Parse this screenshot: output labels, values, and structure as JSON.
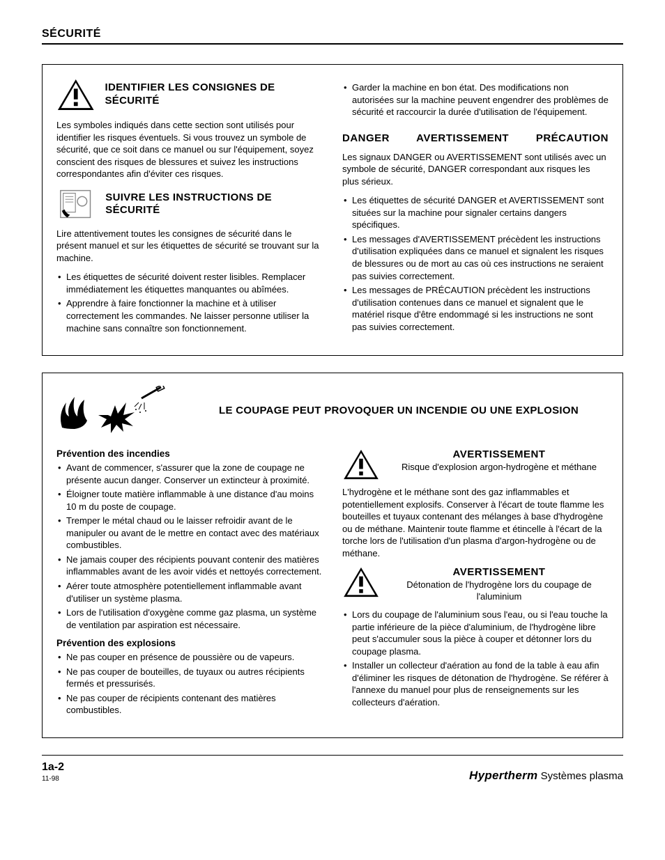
{
  "header": "SÉCURITÉ",
  "box1": {
    "left": {
      "s1": {
        "title": "IDENTIFIER LES CONSIGNES DE SÉCURITÉ",
        "body": "Les symboles indiqués dans cette section sont utilisés pour identifier les risques éventuels. Si vous trouvez un symbole de sécurité, que ce soit dans ce manuel ou sur l'équipement, soyez conscient des risques de blessures et suivez les instructions correspondantes afin d'éviter ces risques."
      },
      "s2": {
        "title": "SUIVRE LES INSTRUCTIONS DE SÉCURITÉ",
        "body": "Lire attentivement toutes les consignes de sécurité dans le présent manuel et sur les étiquettes de sécurité se trouvant sur la machine.",
        "bullets": [
          "Les étiquettes de sécurité doivent rester lisibles. Remplacer immédiatement les étiquettes manquantes ou abîmées.",
          "Apprendre à faire fonctionner la machine et à utiliser correctement les commandes. Ne laisser personne utiliser la machine sans connaître son fonctionnement."
        ]
      }
    },
    "right": {
      "top_bullet": "Garder la machine en bon état. Des modifications non autorisées sur la machine peuvent engendrer des problèmes de sécurité et raccourcir la durée d'utilisation de l'équipement.",
      "heading": "DANGER   AVERTISSEMENT   PRÉCAUTION",
      "body": "Les signaux DANGER ou AVERTISSEMENT sont utilisés avec un symbole de sécurité, DANGER correspondant aux risques les plus sérieux.",
      "bullets": [
        "Les étiquettes de sécurité DANGER et AVERTISSEMENT sont situées sur la machine pour signaler certains dangers spécifiques.",
        "Les messages d'AVERTISSEMENT précèdent les instructions d'utilisation expliquées dans ce manuel et signalent les risques de blessures ou de mort au cas où ces instructions ne seraient pas suivies correctement.",
        "Les messages de PRÉCAUTION précèdent les instructions d'utilisation contenues dans ce manuel et signalent que le matériel risque d'être endommagé si les instructions ne sont pas suivies correctement."
      ]
    }
  },
  "box2": {
    "title": "LE COUPAGE PEUT PROVOQUER UN INCENDIE OU UNE EXPLOSION",
    "left": {
      "h1": "Prévention des incendies",
      "b1": [
        "Avant de commencer, s'assurer que la zone de coupage ne présente aucun danger. Conserver un extincteur à proximité.",
        "Éloigner toute matière inflammable à une distance d'au moins 10 m du poste de coupage.",
        "Tremper le métal chaud ou le laisser refroidir avant de le manipuler ou avant de le mettre en contact avec des matériaux combustibles.",
        "Ne jamais couper des récipients pouvant contenir des matières inflammables avant de les avoir vidés et nettoyés correctement.",
        "Aérer toute atmosphère potentiellement inflammable avant d'utiliser un système plasma.",
        "Lors de l'utilisation d'oxygène comme gaz plasma, un système de ventilation par aspiration est nécessaire."
      ],
      "h2": "Prévention des explosions",
      "b2": [
        "Ne pas couper en présence de poussière ou de vapeurs.",
        "Ne pas couper de bouteilles, de tuyaux ou autres récipients fermés et pressurisés.",
        "Ne pas couper de récipients contenant des matières combustibles."
      ]
    },
    "right": {
      "w1": {
        "title": "AVERTISSEMENT",
        "sub": "Risque d'explosion argon-hydrogène et méthane",
        "body": "L'hydrogène et le méthane sont des gaz inflammables et potentiellement explosifs. Conserver à l'écart de toute flamme les bouteilles et tuyaux contenant des mélanges à base d'hydrogène ou de méthane. Maintenir toute flamme et étincelle à l'écart de la torche lors de l'utilisation d'un plasma d'argon-hydrogène ou de méthane."
      },
      "w2": {
        "title": "AVERTISSEMENT",
        "sub": "Détonation de l'hydrogène lors du coupage de l'aluminium",
        "bullets": [
          "Lors du coupage de l'aluminium sous l'eau, ou si l'eau touche la partie inférieure de la pièce d'aluminium, de l'hydrogène libre peut s'accumuler sous la pièce à couper et détonner lors du coupage plasma.",
          "Installer un collecteur d'aération au fond de la table à eau afin d'éliminer les risques de détonation de l'hydrogène. Se référer à l'annexe du manuel pour plus de renseignements sur les collecteurs d'aération."
        ]
      }
    }
  },
  "footer": {
    "page": "1a-2",
    "date": "11-98",
    "brand": "Hypertherm",
    "right": " Systèmes plasma"
  }
}
